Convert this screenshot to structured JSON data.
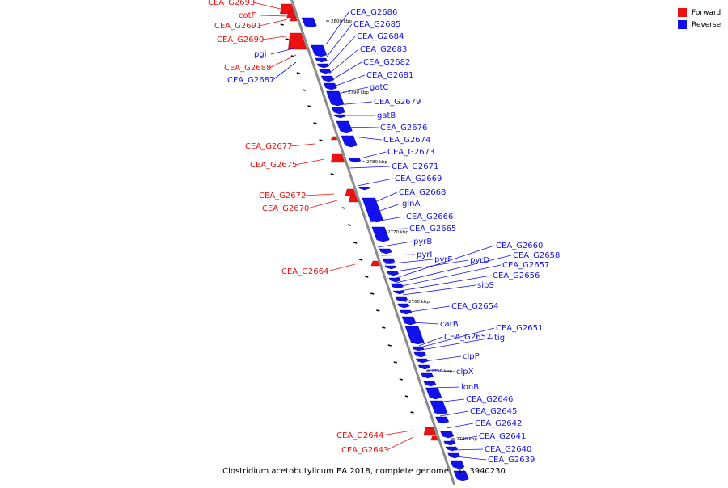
{
  "colors": {
    "forward": "#ee1111",
    "reverse": "#1111ee",
    "backbone": "#8c8c8c",
    "tick": "#222222"
  },
  "legend": [
    {
      "label": "Forward",
      "color": "#ee1111"
    },
    {
      "label": "Reverse",
      "color": "#1111ee"
    }
  ],
  "caption": "Clostridium acetobutylicum EA 2018, complete genome... 0..3940230",
  "ticks": [
    "2800 kbp",
    "2790 kbp",
    "2780 kbp",
    "2770 kbp",
    "2760 kbp",
    "2750 kbp",
    "2740 kbp"
  ],
  "forward_labels": [
    "CEA_G2693",
    "cotF",
    "CEA_G2691",
    "CEA_G2690",
    "pgi",
    "CEA_G2688",
    "CEA_G2687",
    "CEA_G2677",
    "CEA_G2675",
    "CEA_G2672",
    "CEA_G2670",
    "CEA_G2664",
    "CEA_G2644",
    "CEA_G2643"
  ],
  "forward_strands": [
    "forward",
    "forward",
    "forward",
    "forward",
    "reverse",
    "forward",
    "reverse",
    "forward",
    "forward",
    "forward",
    "forward",
    "forward",
    "forward",
    "forward"
  ],
  "reverse_labels": [
    "CEA_G2686",
    "CEA_G2685",
    "CEA_G2684",
    "CEA_G2683",
    "CEA_G2682",
    "CEA_G2681",
    "gatC",
    "CEA_G2679",
    "gatB",
    "CEA_G2676",
    "CEA_G2674",
    "CEA_G2673",
    "CEA_G2671",
    "CEA_G2669",
    "CEA_G2668",
    "glnA",
    "CEA_G2666",
    "CEA_G2665",
    "pyrB",
    "pyrI",
    "pyrF",
    "pyrD",
    "CEA_G2660",
    "CEA_G2658",
    "CEA_G2657",
    "CEA_G2656",
    "sipS",
    "CEA_G2654",
    "carB",
    "CEA_G2652",
    "tig",
    "CEA_G2651",
    "clpP",
    "clpX",
    "lonB",
    "CEA_G2646",
    "CEA_G2645",
    "CEA_G2642",
    "CEA_G2641",
    "CEA_G2640",
    "CEA_G2639"
  ]
}
